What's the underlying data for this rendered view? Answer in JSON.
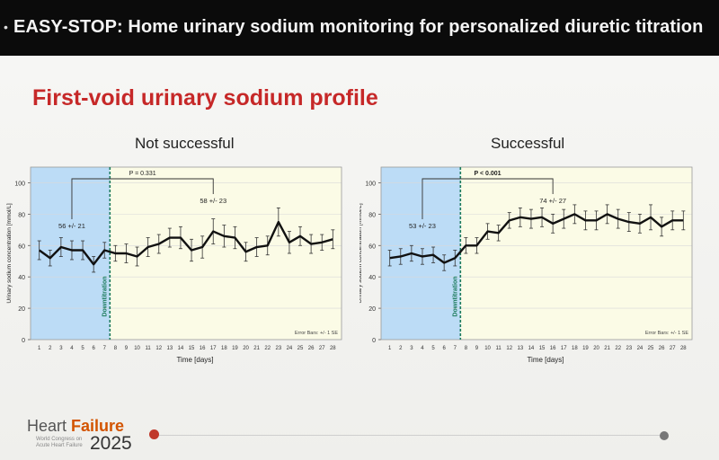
{
  "header": {
    "bullet": "•",
    "title": "EASY-STOP: Home urinary sodium monitoring for personalized diuretic titration"
  },
  "slide": {
    "title": "First-void urinary sodium profile"
  },
  "footer": {
    "brand_word1": "Heart",
    "brand_word2": "Failure",
    "year": "2025",
    "subtitle": "World Congress on Acute Heart Failure"
  },
  "colors": {
    "title": "#c62828",
    "pre_shade": "#bcdcf6",
    "post_shade": "#fbfbe6",
    "downtitration": "#1b7a5a",
    "line": "#111111"
  },
  "chart_data": [
    {
      "type": "line",
      "panel_title": "Not successful",
      "x": [
        1,
        2,
        3,
        4,
        5,
        6,
        7,
        8,
        9,
        10,
        11,
        12,
        13,
        14,
        15,
        16,
        17,
        18,
        19,
        20,
        21,
        22,
        23,
        24,
        25,
        26,
        27,
        28
      ],
      "values": [
        57,
        52,
        59,
        57,
        57,
        48,
        57,
        55,
        55,
        53,
        59,
        61,
        65,
        65,
        57,
        59,
        69,
        66,
        65,
        56,
        59,
        60,
        75,
        62,
        66,
        61,
        62,
        64
      ],
      "errors": [
        6,
        5,
        6,
        6,
        6,
        5,
        5,
        5,
        6,
        6,
        6,
        6,
        6,
        7,
        7,
        7,
        8,
        7,
        7,
        6,
        6,
        6,
        9,
        7,
        6,
        6,
        5,
        6
      ],
      "xlabel": "Time [days]",
      "ylabel": "Urinary sodium concentration [mmol/L]",
      "ylim": [
        0,
        110
      ],
      "yticks": [
        0,
        20,
        40,
        60,
        80,
        100
      ],
      "downtitration_label": "Downtitration",
      "downtitration_day": 8,
      "pvalue": "P = 0.331",
      "annot_pre": "56 +/- 21",
      "annot_post": "58 +/- 23",
      "annot_pre_day": 4,
      "annot_post_day": 17,
      "error_bars_note": "Error Bars: +/- 1 SE"
    },
    {
      "type": "line",
      "panel_title": "Successful",
      "x": [
        1,
        2,
        3,
        4,
        5,
        6,
        7,
        8,
        9,
        10,
        11,
        12,
        13,
        14,
        15,
        16,
        17,
        18,
        19,
        20,
        21,
        22,
        23,
        24,
        25,
        26,
        27,
        28
      ],
      "values": [
        52,
        53,
        55,
        53,
        54,
        49,
        52,
        60,
        60,
        69,
        68,
        76,
        78,
        77,
        78,
        74,
        77,
        80,
        76,
        76,
        80,
        77,
        75,
        74,
        78,
        72,
        76,
        76
      ],
      "errors": [
        5,
        5,
        5,
        5,
        5,
        5,
        5,
        5,
        5,
        5,
        5,
        5,
        6,
        6,
        6,
        6,
        6,
        6,
        6,
        6,
        6,
        6,
        6,
        6,
        8,
        6,
        6,
        6
      ],
      "xlabel": "Time [days]",
      "ylabel": "Urinary sodium concentration [mmol/L]",
      "ylim": [
        0,
        110
      ],
      "yticks": [
        0,
        20,
        40,
        60,
        80,
        100
      ],
      "downtitration_label": "Downtitration",
      "downtitration_day": 8,
      "pvalue": "P < 0.001",
      "annot_pre": "53 +/- 23",
      "annot_post": "74 +/- 27",
      "annot_pre_day": 4,
      "annot_post_day": 16,
      "error_bars_note": "Error Bars: +/- 1 SE"
    }
  ]
}
